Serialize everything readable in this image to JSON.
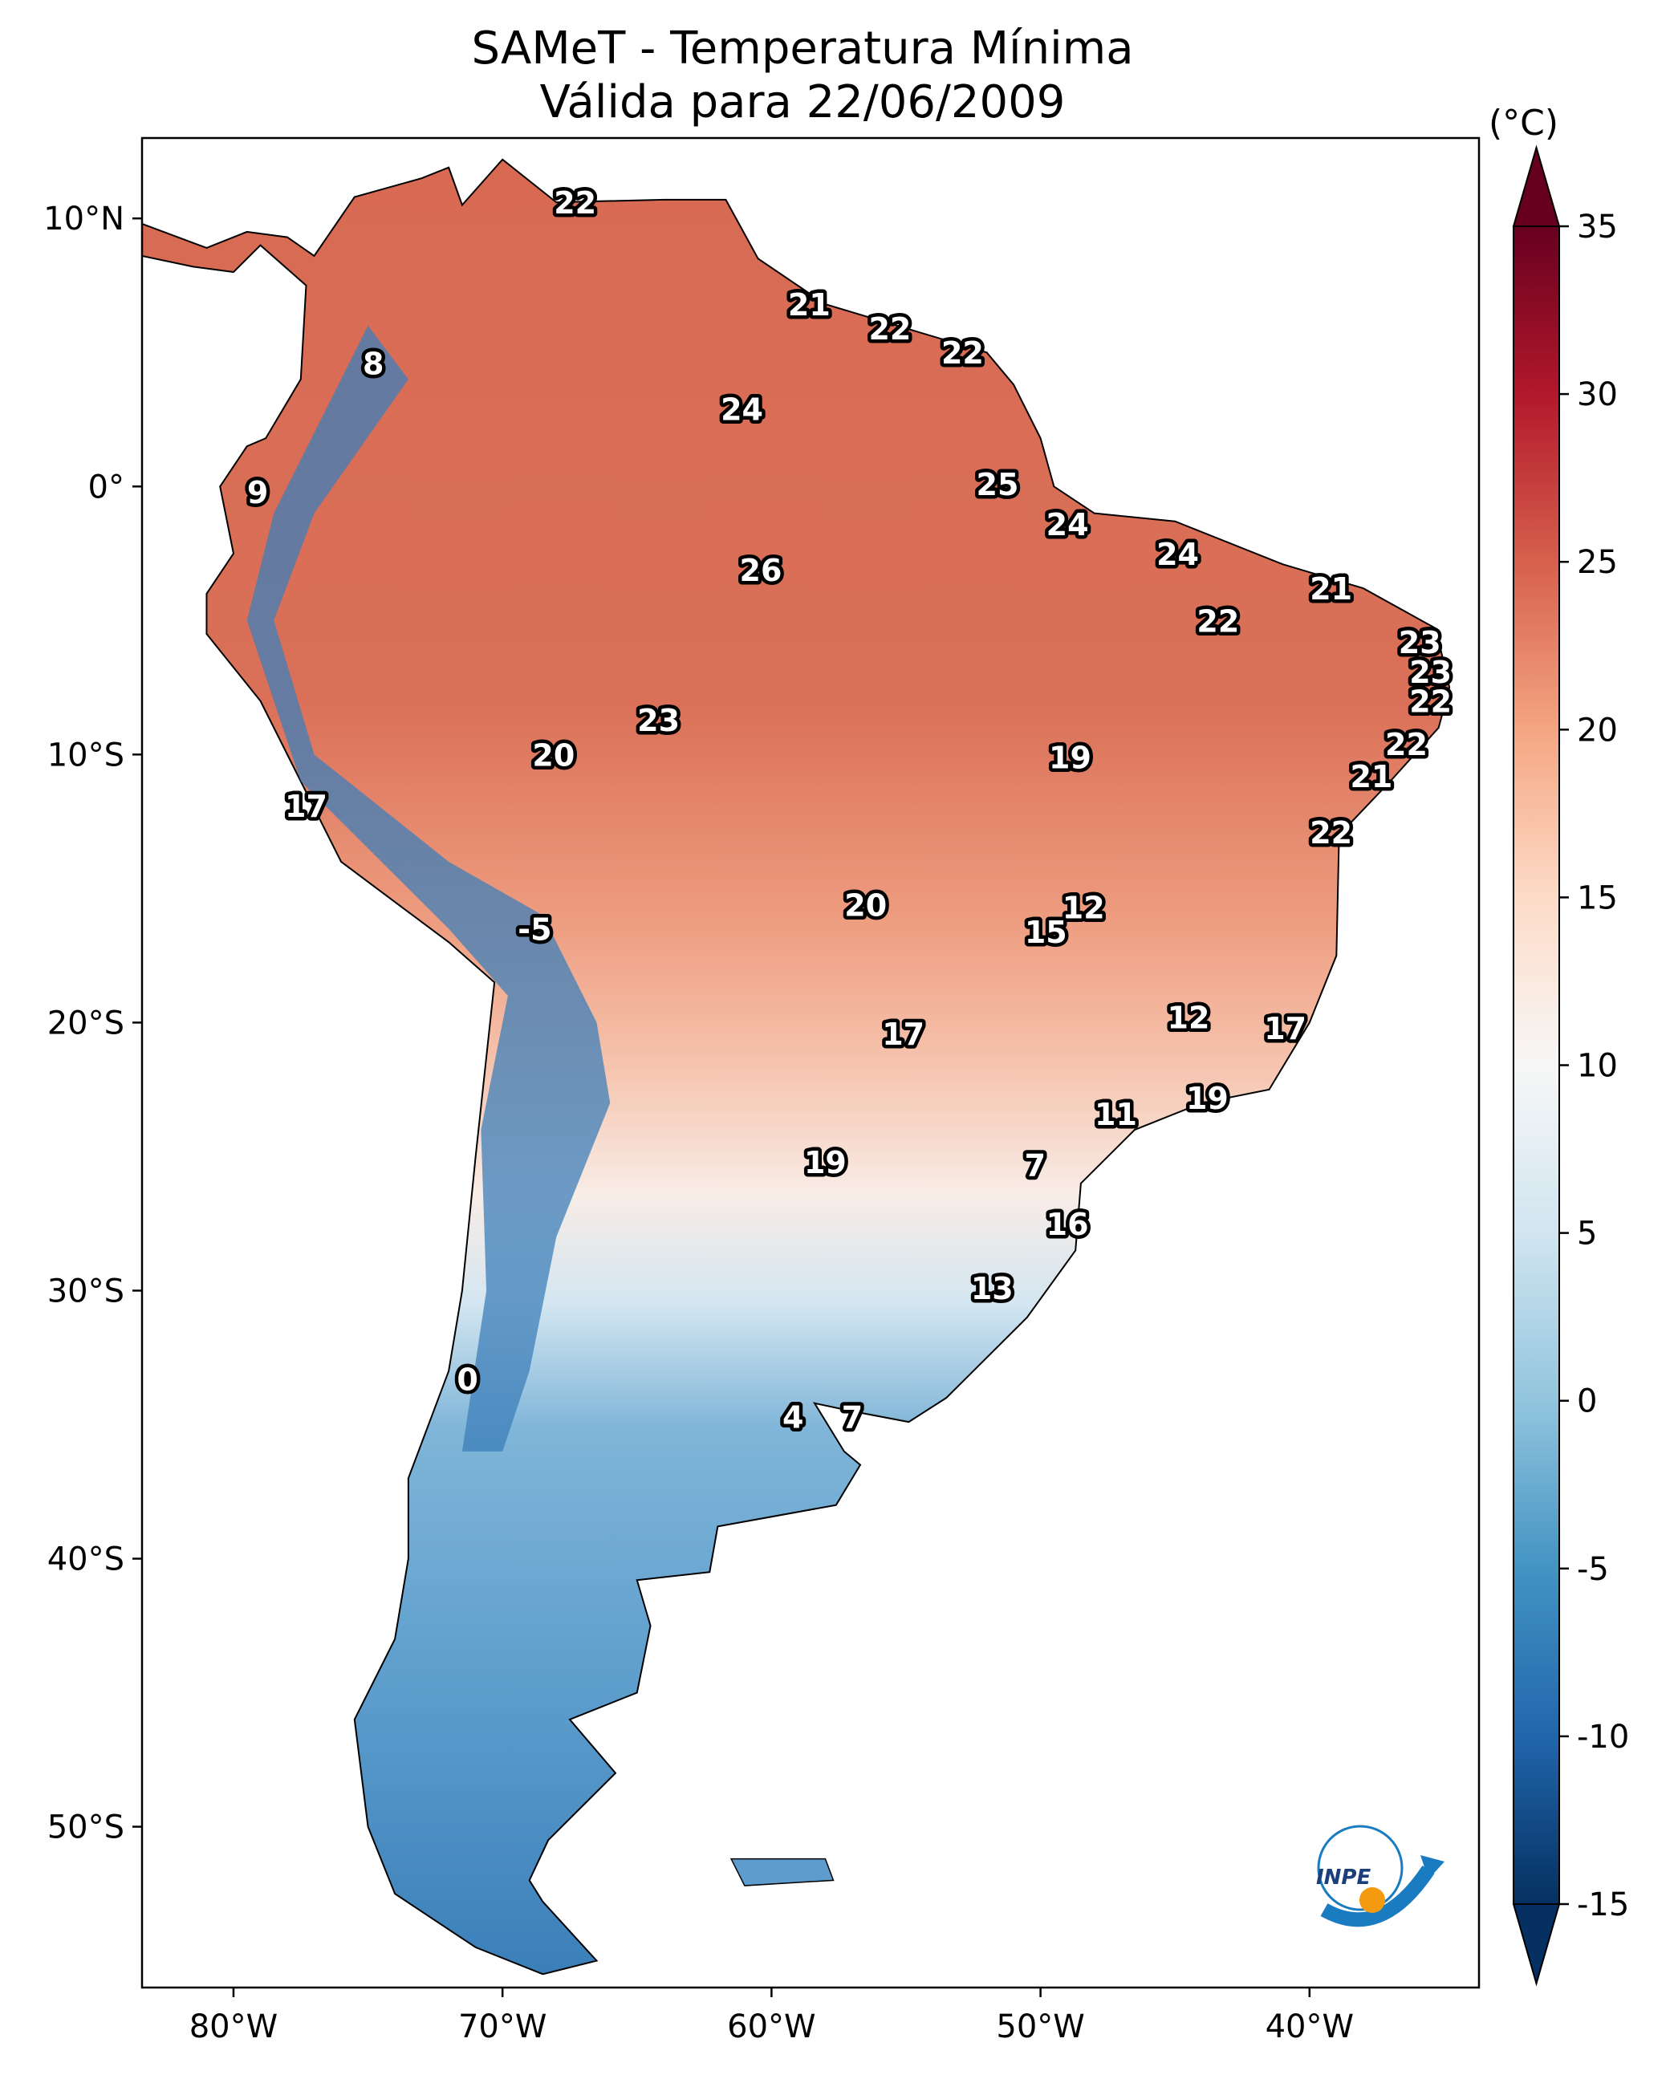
{
  "title": {
    "line1": "SAMeT - Temperatura Mínima",
    "line2": "Válida para 22/06/2009"
  },
  "colorbar": {
    "unit": "(°C)",
    "min": -15,
    "max": 35,
    "ticks": [
      35,
      30,
      25,
      20,
      15,
      10,
      5,
      0,
      -5,
      -10,
      -15
    ],
    "tick_labels": [
      "35",
      "30",
      "25",
      "20",
      "15",
      "10",
      "5",
      "0",
      "-5",
      "-10",
      "-15"
    ],
    "colors": [
      "#053061",
      "#2166ac",
      "#4393c3",
      "#92c5de",
      "#d1e5f0",
      "#f7f7f7",
      "#fddbc7",
      "#f4a582",
      "#d6604d",
      "#b2182b",
      "#67001f"
    ]
  },
  "axes": {
    "lon_range": [
      -83.4,
      -33.7
    ],
    "lat_range": [
      -56,
      13
    ],
    "x_ticks": [
      {
        "v": -80,
        "label": "80°W"
      },
      {
        "v": -70,
        "label": "70°W"
      },
      {
        "v": -60,
        "label": "60°W"
      },
      {
        "v": -50,
        "label": "50°W"
      },
      {
        "v": -40,
        "label": "40°W"
      }
    ],
    "y_ticks": [
      {
        "v": 10,
        "label": "10°N"
      },
      {
        "v": 0,
        "label": "0°"
      },
      {
        "v": -10,
        "label": "10°S"
      },
      {
        "v": -20,
        "label": "20°S"
      },
      {
        "v": -30,
        "label": "30°S"
      },
      {
        "v": -40,
        "label": "40°S"
      },
      {
        "v": -50,
        "label": "50°S"
      }
    ]
  },
  "logo": {
    "text": "INPE"
  },
  "chart_data": {
    "type": "heatmap",
    "title": "SAMeT - Temperatura Mínima — Válida para 22/06/2009",
    "variable": "Minimum temperature (°C)",
    "value_range": [
      -15,
      35
    ],
    "station_labels": [
      {
        "lon": -67.3,
        "lat": 10.6,
        "value": "22"
      },
      {
        "lon": -58.6,
        "lat": 6.8,
        "value": "21"
      },
      {
        "lon": -55.6,
        "lat": 5.9,
        "value": "22"
      },
      {
        "lon": -52.9,
        "lat": 5.0,
        "value": "22"
      },
      {
        "lon": -74.8,
        "lat": 4.6,
        "value": "8"
      },
      {
        "lon": -61.1,
        "lat": 2.9,
        "value": "24"
      },
      {
        "lon": -79.1,
        "lat": -0.2,
        "value": "9"
      },
      {
        "lon": -51.6,
        "lat": 0.1,
        "value": "25"
      },
      {
        "lon": -49.0,
        "lat": -1.4,
        "value": "24"
      },
      {
        "lon": -60.4,
        "lat": -3.1,
        "value": "26"
      },
      {
        "lon": -44.9,
        "lat": -2.5,
        "value": "24"
      },
      {
        "lon": -39.2,
        "lat": -3.8,
        "value": "21"
      },
      {
        "lon": -43.4,
        "lat": -5.0,
        "value": "22"
      },
      {
        "lon": -35.9,
        "lat": -5.8,
        "value": "23"
      },
      {
        "lon": -35.5,
        "lat": -6.9,
        "value": "23"
      },
      {
        "lon": -35.5,
        "lat": -8.0,
        "value": "22"
      },
      {
        "lon": -36.4,
        "lat": -9.6,
        "value": "22"
      },
      {
        "lon": -37.7,
        "lat": -10.8,
        "value": "21"
      },
      {
        "lon": -64.2,
        "lat": -8.7,
        "value": "23"
      },
      {
        "lon": -68.1,
        "lat": -10.0,
        "value": "20"
      },
      {
        "lon": -48.9,
        "lat": -10.1,
        "value": "19"
      },
      {
        "lon": -77.3,
        "lat": -11.9,
        "value": "17"
      },
      {
        "lon": -39.2,
        "lat": -12.9,
        "value": "22"
      },
      {
        "lon": -56.5,
        "lat": -15.6,
        "value": "20"
      },
      {
        "lon": -48.4,
        "lat": -15.7,
        "value": "12"
      },
      {
        "lon": -49.8,
        "lat": -16.6,
        "value": "15"
      },
      {
        "lon": -68.8,
        "lat": -16.5,
        "value": "-5"
      },
      {
        "lon": -44.5,
        "lat": -19.8,
        "value": "12"
      },
      {
        "lon": -40.9,
        "lat": -20.2,
        "value": "17"
      },
      {
        "lon": -55.1,
        "lat": -20.4,
        "value": "17"
      },
      {
        "lon": -43.8,
        "lat": -22.8,
        "value": "19"
      },
      {
        "lon": -47.2,
        "lat": -23.4,
        "value": "11"
      },
      {
        "lon": -58.0,
        "lat": -25.2,
        "value": "19"
      },
      {
        "lon": -50.2,
        "lat": -25.3,
        "value": "7"
      },
      {
        "lon": -49.0,
        "lat": -27.5,
        "value": "16"
      },
      {
        "lon": -51.8,
        "lat": -29.9,
        "value": "13"
      },
      {
        "lon": -71.3,
        "lat": -33.3,
        "value": "0"
      },
      {
        "lon": -59.2,
        "lat": -34.7,
        "value": "4"
      },
      {
        "lon": -57.0,
        "lat": -34.7,
        "value": "7"
      }
    ]
  }
}
